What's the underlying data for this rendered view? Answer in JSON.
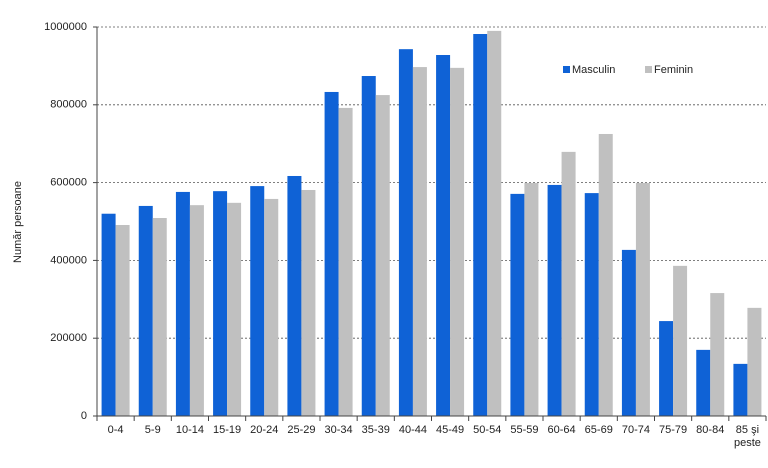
{
  "chart_data": {
    "type": "bar",
    "y_label": "Număr persoane",
    "categories": [
      "0-4",
      "5-9",
      "10-14",
      "15-19",
      "20-24",
      "25-29",
      "30-34",
      "35-39",
      "40-44",
      "45-49",
      "50-54",
      "55-59",
      "60-64",
      "65-69",
      "70-74",
      "75-79",
      "80-84",
      "85 şi peste"
    ],
    "series": [
      {
        "name": "Masculin",
        "color": "#0f62d6",
        "values": [
          520000,
          540000,
          576000,
          578000,
          591000,
          617000,
          833000,
          874000,
          943000,
          928000,
          982000,
          571000,
          594000,
          573000,
          427000,
          244000,
          170000,
          134000
        ]
      },
      {
        "name": "Feminin",
        "color": "#c0c0c0",
        "values": [
          491000,
          509000,
          542000,
          548000,
          558000,
          581000,
          792000,
          825000,
          897000,
          895000,
          990000,
          599000,
          679000,
          725000,
          599000,
          386000,
          316000,
          278000
        ]
      }
    ],
    "ylim": [
      0,
      1000000
    ],
    "yticks": [
      0,
      200000,
      400000,
      600000,
      800000,
      1000000
    ],
    "grid": true,
    "legend": "upper right"
  }
}
